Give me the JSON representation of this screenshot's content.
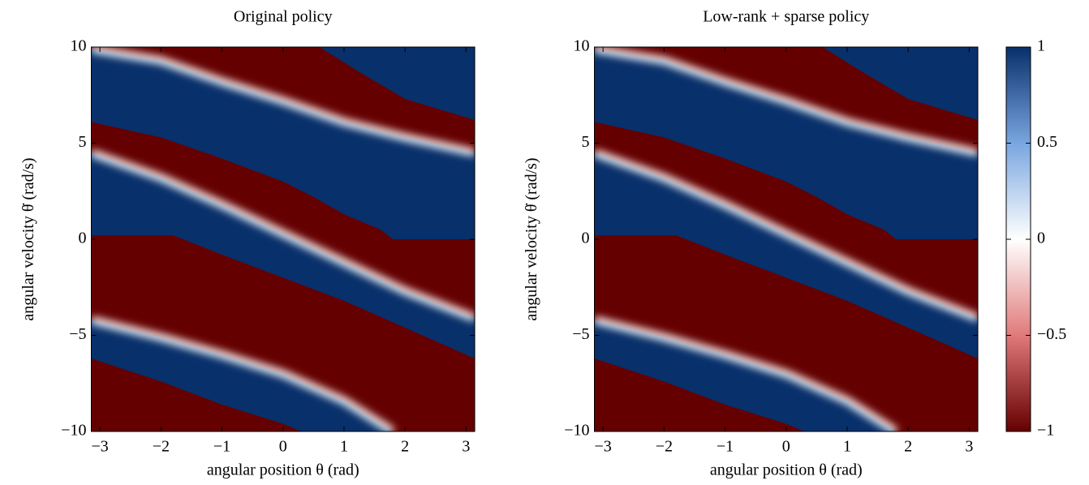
{
  "chart_data": [
    {
      "type": "heatmap",
      "title": "Original policy",
      "xlabel": "angular position θ (rad)",
      "ylabel": "angular velocity θ̇ (rad/s)",
      "xlim": [
        -3.1416,
        3.1416
      ],
      "ylim": [
        -10,
        10
      ],
      "xticks": [
        {
          "value": -3,
          "label": "−3"
        },
        {
          "value": -2,
          "label": "−2"
        },
        {
          "value": -1,
          "label": "−1"
        },
        0,
        1,
        2,
        3
      ],
      "yticks": [
        {
          "value": -10,
          "label": "−10"
        },
        {
          "value": -5,
          "label": "−5"
        },
        0,
        5,
        10
      ],
      "colormap": {
        "values": [
          -1,
          -0.5,
          0,
          0.5,
          1
        ],
        "colors": [
          "#650000",
          "#e07a7a",
          "#ffffff",
          "#79a6e0",
          "#08306b"
        ]
      },
      "regions": [
        {
          "value": -1,
          "x": [
            -3.1416,
            3.1416,
            3.1416,
            -3.1416
          ],
          "y": [
            10,
            10,
            -10,
            -10
          ]
        },
        {
          "value": 1,
          "x": [
            -3.1416,
            -2,
            -1,
            0,
            1,
            2,
            3.1416,
            3.1416,
            1.8,
            1.6,
            1,
            0.5,
            0,
            -1,
            -2,
            -3.1416
          ],
          "y": [
            9.9,
            9.3,
            8.2,
            7.2,
            6.1,
            5.3,
            4.5,
            0,
            0,
            0.5,
            1.3,
            2.2,
            3.0,
            4.2,
            5.3,
            6.1
          ]
        },
        {
          "value": 1,
          "x": [
            0.6,
            3.1416,
            3.1416,
            2,
            1.2
          ],
          "y": [
            10,
            10,
            6.2,
            7.3,
            8.8
          ]
        },
        {
          "value": 1,
          "x": [
            -3.1416,
            -2,
            -1,
            0,
            1,
            2,
            3.1416,
            3.1416,
            2,
            1,
            0,
            -1,
            -1.8,
            -3.1416
          ],
          "y": [
            4.5,
            3.2,
            1.8,
            0.3,
            -1.2,
            -2.7,
            -4.1,
            -6.2,
            -4.6,
            -3.2,
            -2,
            -0.8,
            0.2,
            0.2
          ]
        },
        {
          "value": 1,
          "x": [
            -3.1416,
            -2,
            -1,
            0,
            1,
            1.8,
            0.3,
            0,
            -1,
            -2,
            -3.1416
          ],
          "y": [
            -4.2,
            -5.1,
            -6,
            -7,
            -8.4,
            -10,
            -10,
            -9.6,
            -8.6,
            -7.4,
            -6.2
          ]
        }
      ],
      "contours": [
        {
          "value": 0,
          "x": [
            -3.1416,
            -2,
            -1,
            0,
            1,
            2,
            3.1416
          ],
          "y": [
            9.9,
            9.3,
            8.2,
            7.2,
            6.1,
            5.3,
            4.5
          ]
        },
        {
          "value": 0,
          "x": [
            -3.1416,
            -2,
            -1,
            0,
            1,
            2,
            3.1416
          ],
          "y": [
            4.5,
            3.2,
            1.8,
            0.3,
            -1.2,
            -2.7,
            -4.1
          ]
        },
        {
          "value": 0,
          "x": [
            -3.1416,
            -2,
            -1,
            0,
            1,
            1.8
          ],
          "y": [
            -4.2,
            -5.1,
            -6,
            -7,
            -8.4,
            -10
          ]
        }
      ]
    },
    {
      "type": "heatmap",
      "title": "Low-rank + sparse policy",
      "xlabel": "angular position θ (rad)",
      "ylabel": "angular velocity θ̇ (rad/s)",
      "xlim": [
        -3.1416,
        3.1416
      ],
      "ylim": [
        -10,
        10
      ],
      "xticks": [
        {
          "value": -3,
          "label": "−3"
        },
        {
          "value": -2,
          "label": "−2"
        },
        {
          "value": -1,
          "label": "−1"
        },
        0,
        1,
        2,
        3
      ],
      "yticks": [
        {
          "value": -10,
          "label": "−10"
        },
        {
          "value": -5,
          "label": "−5"
        },
        0,
        5,
        10
      ],
      "colormap": {
        "values": [
          -1,
          -0.5,
          0,
          0.5,
          1
        ],
        "colors": [
          "#650000",
          "#e07a7a",
          "#ffffff",
          "#79a6e0",
          "#08306b"
        ]
      },
      "regions": [
        {
          "value": -1,
          "x": [
            -3.1416,
            3.1416,
            3.1416,
            -3.1416
          ],
          "y": [
            10,
            10,
            -10,
            -10
          ]
        },
        {
          "value": 1,
          "x": [
            -3.1416,
            -2,
            -1,
            0,
            1,
            2,
            3.1416,
            3.1416,
            1.8,
            1.6,
            1,
            0.5,
            0,
            -1,
            -2,
            -3.1416
          ],
          "y": [
            9.9,
            9.3,
            8.2,
            7.2,
            6.1,
            5.3,
            4.5,
            0,
            0,
            0.5,
            1.3,
            2.2,
            3.0,
            4.2,
            5.3,
            6.1
          ]
        },
        {
          "value": 1,
          "x": [
            0.6,
            3.1416,
            3.1416,
            2,
            1.2
          ],
          "y": [
            10,
            10,
            6.2,
            7.3,
            8.8
          ]
        },
        {
          "value": 1,
          "x": [
            -3.1416,
            -2,
            -1,
            0,
            1,
            2,
            3.1416,
            3.1416,
            2,
            1,
            0,
            -1,
            -1.8,
            -3.1416
          ],
          "y": [
            4.5,
            3.2,
            1.8,
            0.3,
            -1.2,
            -2.7,
            -4.1,
            -6.2,
            -4.6,
            -3.2,
            -2,
            -0.8,
            0.2,
            0.2
          ]
        },
        {
          "value": 1,
          "x": [
            -3.1416,
            -2,
            -1,
            0,
            1,
            1.8,
            0.3,
            0,
            -1,
            -2,
            -3.1416
          ],
          "y": [
            -4.2,
            -5.1,
            -6,
            -7,
            -8.4,
            -10,
            -10,
            -9.6,
            -8.6,
            -7.4,
            -6.2
          ]
        }
      ],
      "contours": [
        {
          "value": 0,
          "x": [
            -3.1416,
            -2,
            -1,
            0,
            1,
            2,
            3.1416
          ],
          "y": [
            9.9,
            9.3,
            8.2,
            7.2,
            6.1,
            5.3,
            4.5
          ]
        },
        {
          "value": 0,
          "x": [
            -3.1416,
            -2,
            -1,
            0,
            1,
            2,
            3.1416
          ],
          "y": [
            4.5,
            3.2,
            1.8,
            0.3,
            -1.2,
            -2.7,
            -4.1
          ]
        },
        {
          "value": 0,
          "x": [
            -3.1416,
            -2,
            -1,
            0,
            1,
            1.8
          ],
          "y": [
            -4.2,
            -5.1,
            -6,
            -7,
            -8.4,
            -10
          ]
        }
      ],
      "colorbar": {
        "lim": [
          -1,
          1
        ],
        "ticks": [
          {
            "value": -1,
            "label": "−1"
          },
          {
            "value": -0.5,
            "label": "−0.5"
          },
          0,
          0.5,
          1
        ]
      }
    }
  ]
}
